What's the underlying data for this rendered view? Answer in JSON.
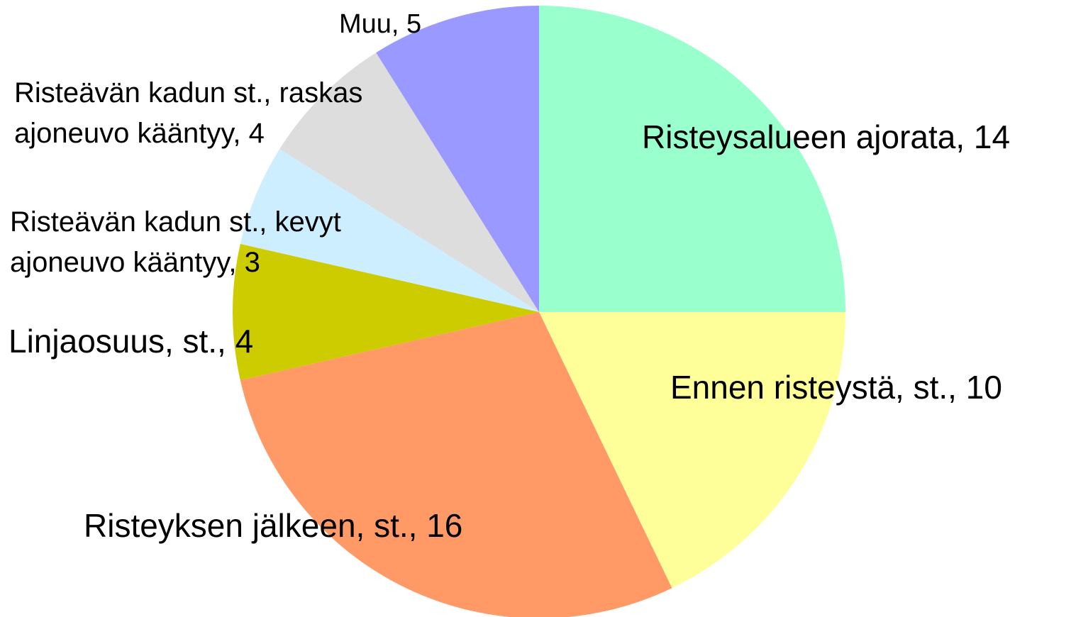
{
  "chart_data": {
    "type": "pie",
    "categories": [
      "Risteysalueen ajorata, 14",
      "Ennen risteystä, st., 10",
      "Risteyksen jälkeen, st., 16",
      "Linjaosuus, st., 4",
      "Risteävän kadun st., kevyt\najoneuvo kääntyy, 3",
      "Risteävän kadun st., raskas\najoneuvo kääntyy, 4",
      "Muu, 5"
    ],
    "values": [
      14,
      10,
      16,
      4,
      3,
      4,
      5
    ],
    "colors": [
      "#99ffcc",
      "#ffff99",
      "#ff9966",
      "#cccc00",
      "#cceeff",
      "#dddddd",
      "#9999ff"
    ]
  }
}
